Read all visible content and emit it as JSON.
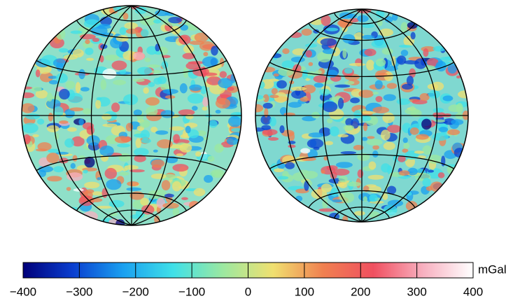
{
  "colorbar": {
    "unit": "mGal",
    "range": [
      -400,
      400
    ],
    "ticks": [
      {
        "value": -400,
        "label": "−400"
      },
      {
        "value": -300,
        "label": "−300"
      },
      {
        "value": -200,
        "label": "−200"
      },
      {
        "value": -100,
        "label": "−100"
      },
      0,
      100,
      200,
      300,
      400
    ],
    "colors": [
      "#00007a",
      "#0a3fd0",
      "#1aa0f0",
      "#3fe0e8",
      "#9ce8a0",
      "#f0e070",
      "#f08050",
      "#f05060",
      "#f8b0c0",
      "#ffffff"
    ]
  }
}
